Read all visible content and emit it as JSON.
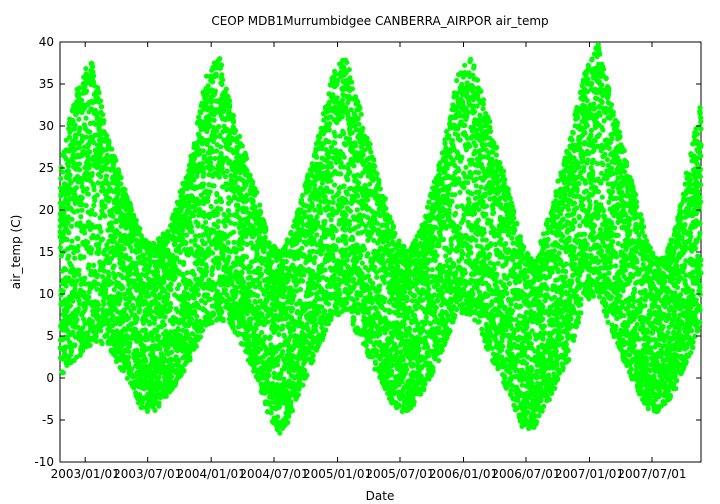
{
  "chart_data": {
    "type": "scatter",
    "title": "CEOP MDB1Murrumbidgee CANBERRA_AIRPOR  air_temp",
    "xlabel": "Date",
    "ylabel": "air_temp (C)",
    "ylim": [
      -10,
      40
    ],
    "yticks": [
      -10,
      -5,
      0,
      5,
      10,
      15,
      20,
      25,
      30,
      35,
      40
    ],
    "xlim": [
      "2002-10-20",
      "2007-11-20"
    ],
    "xticks": [
      "2003/01/01",
      "2003/07/01",
      "2004/01/01",
      "2004/07/01",
      "2005/01/01",
      "2005/07/01",
      "2006/01/01",
      "2006/07/01",
      "2007/01/01",
      "2007/07/01"
    ],
    "xtick_labels": [
      "2003/01/01",
      "2003/07/01",
      "2004/01/01",
      "2004/07/01",
      "2005/01/01",
      "2005/07/01",
      "2006/01/01",
      "2006/07/01",
      "2007/01/01",
      "2007/07/01"
    ],
    "grid": false,
    "legend": "none",
    "series_color": "#00ff00",
    "series": [
      {
        "name": "",
        "envelope": {
          "x": [
            "2002-10-20",
            "2002-12-01",
            "2003-01-20",
            "2003-03-01",
            "2003-05-01",
            "2003-06-15",
            "2003-07-20",
            "2003-09-01",
            "2003-11-01",
            "2003-12-15",
            "2004-01-25",
            "2004-03-01",
            "2004-05-01",
            "2004-06-20",
            "2004-07-25",
            "2004-09-01",
            "2004-11-01",
            "2004-12-15",
            "2005-01-25",
            "2005-03-01",
            "2005-05-01",
            "2005-06-20",
            "2005-07-25",
            "2005-09-01",
            "2005-11-01",
            "2005-12-15",
            "2006-01-25",
            "2006-03-01",
            "2006-05-01",
            "2006-06-20",
            "2006-07-25",
            "2006-09-01",
            "2006-11-01",
            "2006-12-15",
            "2007-01-25",
            "2007-03-01",
            "2007-05-01",
            "2007-06-20",
            "2007-07-25",
            "2007-09-01",
            "2007-11-20"
          ],
          "y_max": [
            25,
            34,
            38.5,
            30,
            22,
            17,
            16,
            18,
            26,
            36,
            38.5,
            32,
            24,
            16,
            15,
            19,
            28,
            36,
            38.5,
            33,
            24,
            17,
            15,
            18,
            27,
            36,
            38.5,
            33,
            24,
            16,
            14,
            19,
            28,
            36,
            40,
            34,
            24,
            16,
            14,
            17,
            33
          ],
          "y_min": [
            0,
            2,
            4,
            4,
            0,
            -4,
            -4,
            -2,
            2,
            6,
            7,
            6,
            1,
            -5,
            -7,
            -3,
            3,
            7,
            8,
            5,
            0,
            -4,
            -4,
            -2,
            3,
            8,
            7,
            4,
            -1,
            -6,
            -6,
            -3,
            2,
            9,
            10,
            6,
            0,
            -4,
            -4,
            -2,
            6
          ]
        }
      }
    ]
  }
}
